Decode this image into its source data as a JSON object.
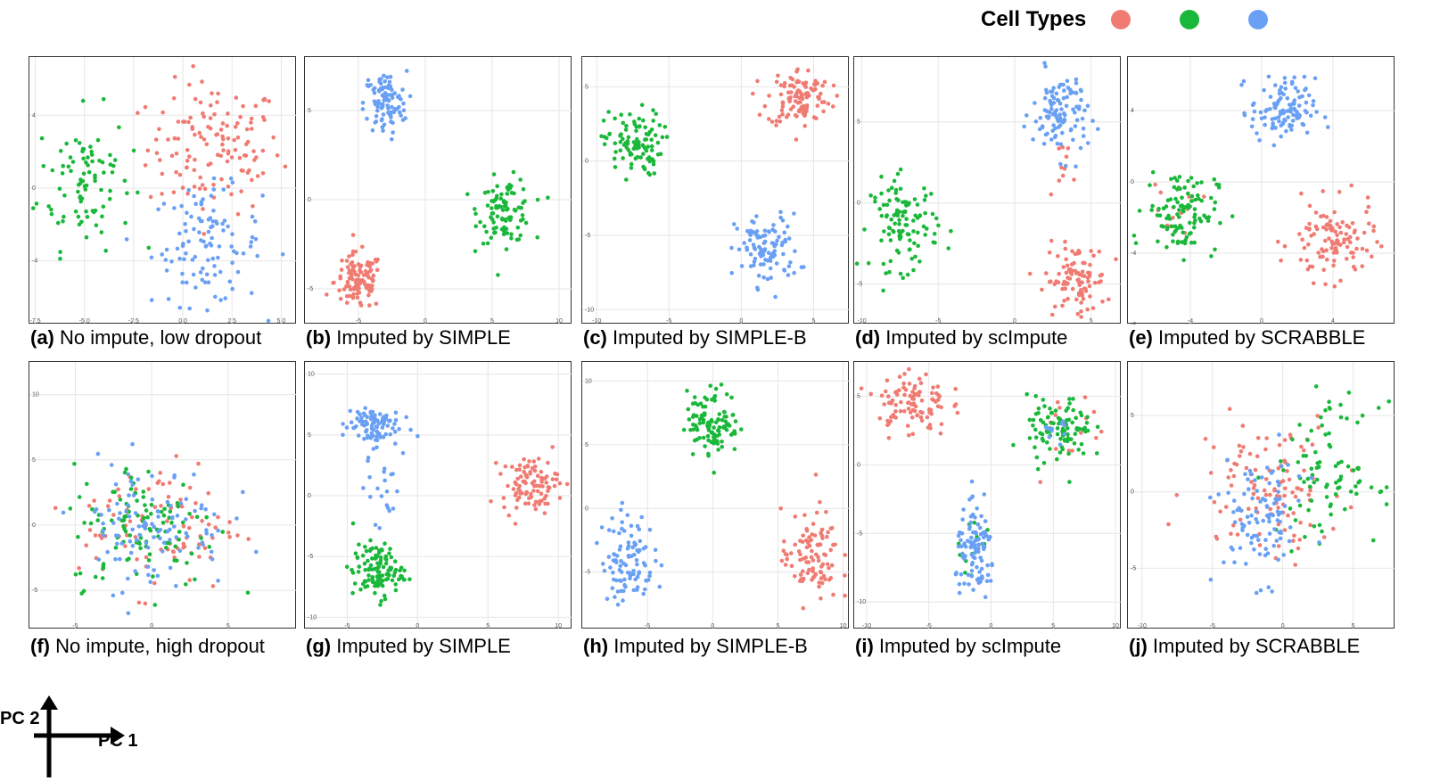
{
  "legend": {
    "title": "Cell Types",
    "colors": [
      "#f07b72",
      "#1ab83a",
      "#6aa0f4"
    ]
  },
  "pc_axes": {
    "x_label": "PC 1",
    "y_label": "PC 2"
  },
  "chart_data": [
    {
      "type": "scatter",
      "letter": "(a)",
      "caption": "No impute, low dropout",
      "xlim": [
        -7.8,
        5.8
      ],
      "ylim": [
        -7.5,
        7.2
      ],
      "xticks": [
        -7.5,
        -5.0,
        -2.5,
        0.0,
        2.5,
        5.0
      ],
      "yticks": [
        -4,
        0,
        4
      ],
      "series": [
        {
          "color": "#f07b72",
          "clusters": [
            {
              "cx": 1.6,
              "cy": 2.2,
              "sx": 1.7,
              "sy": 1.8,
              "n": 130
            }
          ]
        },
        {
          "color": "#1ab83a",
          "clusters": [
            {
              "cx": -5.0,
              "cy": 0.5,
              "sx": 1.2,
              "sy": 1.9,
              "n": 90
            }
          ]
        },
        {
          "color": "#6aa0f4",
          "clusters": [
            {
              "cx": 1.2,
              "cy": -3.2,
              "sx": 1.4,
              "sy": 1.6,
              "n": 110
            }
          ]
        }
      ]
    },
    {
      "type": "scatter",
      "letter": "(b)",
      "caption": "Imputed by SIMPLE",
      "xlim": [
        -9,
        11
      ],
      "ylim": [
        -7,
        8
      ],
      "xticks": [
        -5,
        0,
        5,
        10
      ],
      "yticks": [
        -5,
        0,
        5
      ],
      "series": [
        {
          "color": "#f07b72",
          "clusters": [
            {
              "cx": -5.0,
              "cy": -4.6,
              "sx": 0.9,
              "sy": 0.8,
              "n": 110
            }
          ]
        },
        {
          "color": "#1ab83a",
          "clusters": [
            {
              "cx": 6.0,
              "cy": -0.6,
              "sx": 1.0,
              "sy": 0.9,
              "n": 100
            }
          ]
        },
        {
          "color": "#6aa0f4",
          "clusters": [
            {
              "cx": -3.0,
              "cy": 5.4,
              "sx": 0.8,
              "sy": 0.9,
              "n": 100
            }
          ]
        }
      ]
    },
    {
      "type": "scatter",
      "letter": "(c)",
      "caption": "Imputed by SIMPLE-B",
      "xlim": [
        -11,
        7.5
      ],
      "ylim": [
        -11,
        7
      ],
      "xticks": [
        -10,
        -5,
        0,
        5
      ],
      "yticks": [
        -10,
        -5,
        0,
        5
      ],
      "series": [
        {
          "color": "#f07b72",
          "clusters": [
            {
              "cx": 4.0,
              "cy": 4.3,
              "sx": 1.1,
              "sy": 1.0,
              "n": 110
            }
          ]
        },
        {
          "color": "#1ab83a",
          "clusters": [
            {
              "cx": -7.5,
              "cy": 1.2,
              "sx": 1.0,
              "sy": 1.1,
              "n": 100
            }
          ]
        },
        {
          "color": "#6aa0f4",
          "clusters": [
            {
              "cx": 1.8,
              "cy": -6.0,
              "sx": 1.1,
              "sy": 1.2,
              "n": 100
            }
          ]
        }
      ]
    },
    {
      "type": "scatter",
      "letter": "(d)",
      "caption": "Imputed by scImpute",
      "xlim": [
        -10.5,
        7
      ],
      "ylim": [
        -7.5,
        9
      ],
      "xticks": [
        -10,
        -5,
        0,
        5
      ],
      "yticks": [
        -5,
        0,
        5
      ],
      "series": [
        {
          "color": "#f07b72",
          "clusters": [
            {
              "cx": 4.0,
              "cy": -4.8,
              "sx": 1.0,
              "sy": 1.1,
              "n": 100
            },
            {
              "cx": 3.2,
              "cy": 2.5,
              "sx": 0.6,
              "sy": 0.7,
              "n": 10
            }
          ]
        },
        {
          "color": "#1ab83a",
          "clusters": [
            {
              "cx": -7.2,
              "cy": -1.3,
              "sx": 1.1,
              "sy": 1.4,
              "n": 110
            }
          ]
        },
        {
          "color": "#6aa0f4",
          "clusters": [
            {
              "cx": 3.0,
              "cy": 5.5,
              "sx": 0.9,
              "sy": 1.3,
              "n": 110
            }
          ]
        }
      ]
    },
    {
      "type": "scatter",
      "letter": "(e)",
      "caption": "Imputed by SCRABBLE",
      "xlim": [
        -7.5,
        7.5
      ],
      "ylim": [
        -8,
        7
      ],
      "xticks": [
        -4,
        0,
        4
      ],
      "yticks": [
        -8,
        -4,
        0,
        4
      ],
      "series": [
        {
          "color": "#f07b72",
          "clusters": [
            {
              "cx": 4.0,
              "cy": -3.4,
              "sx": 1.2,
              "sy": 1.1,
              "n": 110
            },
            {
              "cx": -5.0,
              "cy": -1.5,
              "sx": 0.8,
              "sy": 0.8,
              "n": 15
            }
          ]
        },
        {
          "color": "#1ab83a",
          "clusters": [
            {
              "cx": -4.5,
              "cy": -1.6,
              "sx": 1.0,
              "sy": 1.2,
              "n": 110
            }
          ]
        },
        {
          "color": "#6aa0f4",
          "clusters": [
            {
              "cx": 1.2,
              "cy": 4.0,
              "sx": 0.9,
              "sy": 0.9,
              "n": 110
            }
          ]
        }
      ]
    },
    {
      "type": "scatter",
      "letter": "(f)",
      "caption": "No impute, high dropout",
      "xlim": [
        -8,
        9.5
      ],
      "ylim": [
        -8,
        12.5
      ],
      "xticks": [
        -5,
        0,
        5
      ],
      "yticks": [
        -5,
        0,
        5,
        10
      ],
      "series": [
        {
          "color": "#f07b72",
          "clusters": [
            {
              "cx": 0.5,
              "cy": 0.0,
              "sx": 2.6,
              "sy": 2.5,
              "n": 90
            }
          ]
        },
        {
          "color": "#1ab83a",
          "clusters": [
            {
              "cx": -0.5,
              "cy": 0.0,
              "sx": 2.4,
              "sy": 2.4,
              "n": 110
            }
          ]
        },
        {
          "color": "#6aa0f4",
          "clusters": [
            {
              "cx": 0.0,
              "cy": 0.0,
              "sx": 2.5,
              "sy": 2.5,
              "n": 110
            }
          ]
        }
      ]
    },
    {
      "type": "scatter",
      "letter": "(g)",
      "caption": "Imputed by SIMPLE",
      "xlim": [
        -8,
        11
      ],
      "ylim": [
        -11,
        11
      ],
      "xticks": [
        -5,
        0,
        5,
        10
      ],
      "yticks": [
        -10,
        -5,
        0,
        5,
        10
      ],
      "series": [
        {
          "color": "#f07b72",
          "clusters": [
            {
              "cx": 8.0,
              "cy": 1.0,
              "sx": 1.0,
              "sy": 1.1,
              "n": 100
            }
          ]
        },
        {
          "color": "#1ab83a",
          "clusters": [
            {
              "cx": -2.8,
              "cy": -6.2,
              "sx": 0.9,
              "sy": 1.1,
              "n": 110
            }
          ]
        },
        {
          "color": "#6aa0f4",
          "clusters": [
            {
              "cx": -3.3,
              "cy": 5.8,
              "sx": 1.0,
              "sy": 0.9,
              "n": 90
            },
            {
              "cx": -2.5,
              "cy": 0.8,
              "sx": 0.6,
              "sy": 1.5,
              "n": 20
            }
          ]
        }
      ]
    },
    {
      "type": "scatter",
      "letter": "(h)",
      "caption": "Imputed by SIMPLE-B",
      "xlim": [
        -10,
        10.5
      ],
      "ylim": [
        -9.5,
        11.5
      ],
      "xticks": [
        -5,
        0,
        5,
        10
      ],
      "yticks": [
        -5,
        0,
        5,
        10
      ],
      "series": [
        {
          "color": "#f07b72",
          "clusters": [
            {
              "cx": 7.5,
              "cy": -3.8,
              "sx": 1.1,
              "sy": 1.8,
              "n": 100
            }
          ]
        },
        {
          "color": "#1ab83a",
          "clusters": [
            {
              "cx": 0.0,
              "cy": 6.8,
              "sx": 1.0,
              "sy": 1.3,
              "n": 110
            }
          ]
        },
        {
          "color": "#6aa0f4",
          "clusters": [
            {
              "cx": -6.5,
              "cy": -4.0,
              "sx": 1.0,
              "sy": 1.8,
              "n": 100
            }
          ]
        }
      ]
    },
    {
      "type": "scatter",
      "letter": "(i)",
      "caption": "Imputed by scImpute",
      "xlim": [
        -11,
        10.5
      ],
      "ylim": [
        -12,
        7.5
      ],
      "xticks": [
        -10,
        -5,
        0,
        5,
        10
      ],
      "yticks": [
        -10,
        -5,
        0,
        5
      ],
      "series": [
        {
          "color": "#f07b72",
          "clusters": [
            {
              "cx": -6.3,
              "cy": 4.5,
              "sx": 1.4,
              "sy": 1.2,
              "n": 100
            },
            {
              "cx": 6.0,
              "cy": 3.0,
              "sx": 1.8,
              "sy": 1.8,
              "n": 15
            }
          ]
        },
        {
          "color": "#1ab83a",
          "clusters": [
            {
              "cx": 5.5,
              "cy": 2.5,
              "sx": 1.3,
              "sy": 1.2,
              "n": 100
            },
            {
              "cx": -1.0,
              "cy": -5.5,
              "sx": 0.8,
              "sy": 1.0,
              "n": 15
            }
          ]
        },
        {
          "color": "#6aa0f4",
          "clusters": [
            {
              "cx": -1.2,
              "cy": -6.5,
              "sx": 0.8,
              "sy": 1.6,
              "n": 100
            },
            {
              "cx": 5.0,
              "cy": 2.5,
              "sx": 0.8,
              "sy": 0.7,
              "n": 10
            }
          ]
        }
      ]
    },
    {
      "type": "scatter",
      "letter": "(j)",
      "caption": "Imputed by SCRABBLE",
      "xlim": [
        -11,
        8
      ],
      "ylim": [
        -9,
        8.5
      ],
      "xticks": [
        -10,
        -5,
        0,
        5
      ],
      "yticks": [
        -5,
        0,
        5
      ],
      "series": [
        {
          "color": "#f07b72",
          "clusters": [
            {
              "cx": -1.0,
              "cy": 0.5,
              "sx": 2.6,
              "sy": 2.3,
              "n": 110
            }
          ]
        },
        {
          "color": "#1ab83a",
          "clusters": [
            {
              "cx": 3.3,
              "cy": 1.3,
              "sx": 1.8,
              "sy": 2.2,
              "n": 90
            }
          ]
        },
        {
          "color": "#6aa0f4",
          "clusters": [
            {
              "cx": -1.5,
              "cy": -1.8,
              "sx": 1.5,
              "sy": 2.0,
              "n": 100
            }
          ]
        }
      ]
    }
  ]
}
